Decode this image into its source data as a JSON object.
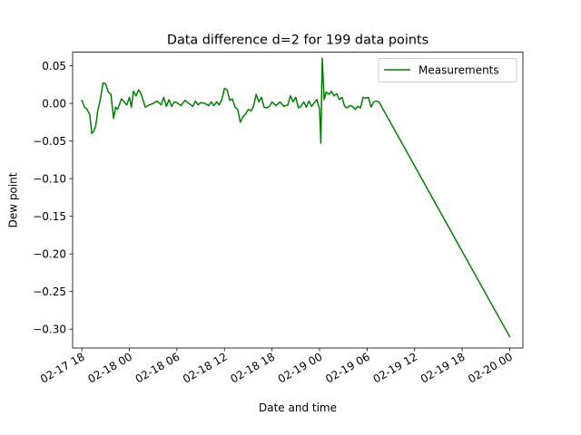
{
  "chart_data": {
    "type": "line",
    "title": "Data difference d=2 for 199 data points",
    "xlabel": "Date and time",
    "ylabel": "Dew point",
    "xlim": [
      "2018-02-17T16:50",
      "2018-02-20T01:40"
    ],
    "ylim": [
      -0.325,
      0.068
    ],
    "grid": false,
    "legend_position": "top-right",
    "x_ticks": [
      {
        "value": "2018-02-17T18:00",
        "label": "02-17 18"
      },
      {
        "value": "2018-02-18T00:00",
        "label": "02-18 00"
      },
      {
        "value": "2018-02-18T06:00",
        "label": "02-18 06"
      },
      {
        "value": "2018-02-18T12:00",
        "label": "02-18 12"
      },
      {
        "value": "2018-02-18T18:00",
        "label": "02-18 18"
      },
      {
        "value": "2018-02-19T00:00",
        "label": "02-19 00"
      },
      {
        "value": "2018-02-19T06:00",
        "label": "02-19 06"
      },
      {
        "value": "2018-02-19T12:00",
        "label": "02-19 12"
      },
      {
        "value": "2018-02-19T18:00",
        "label": "02-19 18"
      },
      {
        "value": "2018-02-20T00:00",
        "label": "02-20 00"
      }
    ],
    "y_ticks": [
      {
        "value": 0.05,
        "label": "0.05"
      },
      {
        "value": 0.0,
        "label": "0.00"
      },
      {
        "value": -0.05,
        "label": "−0.05"
      },
      {
        "value": -0.1,
        "label": "−0.10"
      },
      {
        "value": -0.15,
        "label": "−0.15"
      },
      {
        "value": -0.2,
        "label": "−0.20"
      },
      {
        "value": -0.25,
        "label": "−0.25"
      },
      {
        "value": -0.3,
        "label": "−0.30"
      }
    ],
    "series": [
      {
        "name": "Measurements",
        "color": "#008000",
        "points": [
          [
            "2018-02-17T18:00",
            0.004
          ],
          [
            "2018-02-17T18:20",
            -0.005
          ],
          [
            "2018-02-17T18:40",
            -0.008
          ],
          [
            "2018-02-17T19:00",
            -0.015
          ],
          [
            "2018-02-17T19:15",
            -0.04
          ],
          [
            "2018-02-17T19:30",
            -0.037
          ],
          [
            "2018-02-17T19:45",
            -0.03
          ],
          [
            "2018-02-17T20:00",
            -0.01
          ],
          [
            "2018-02-17T20:20",
            0.005
          ],
          [
            "2018-02-17T20:40",
            0.027
          ],
          [
            "2018-02-17T21:00",
            0.026
          ],
          [
            "2018-02-17T21:20",
            0.015
          ],
          [
            "2018-02-17T21:40",
            0.012
          ],
          [
            "2018-02-17T22:00",
            -0.02
          ],
          [
            "2018-02-17T22:15",
            -0.005
          ],
          [
            "2018-02-17T22:30",
            -0.008
          ],
          [
            "2018-02-17T23:00",
            0.006
          ],
          [
            "2018-02-17T23:20",
            0.002
          ],
          [
            "2018-02-17T23:40",
            -0.002
          ],
          [
            "2018-02-18T00:00",
            0.008
          ],
          [
            "2018-02-18T00:15",
            -0.005
          ],
          [
            "2018-02-18T00:30",
            0.016
          ],
          [
            "2018-02-18T00:50",
            0.01
          ],
          [
            "2018-02-18T01:10",
            0.018
          ],
          [
            "2018-02-18T01:30",
            0.012
          ],
          [
            "2018-02-18T02:00",
            -0.005
          ],
          [
            "2018-02-18T02:30",
            -0.002
          ],
          [
            "2018-02-18T03:00",
            0.0
          ],
          [
            "2018-02-18T03:30",
            0.003
          ],
          [
            "2018-02-18T04:00",
            -0.002
          ],
          [
            "2018-02-18T04:20",
            0.008
          ],
          [
            "2018-02-18T04:40",
            -0.004
          ],
          [
            "2018-02-18T05:00",
            0.005
          ],
          [
            "2018-02-18T05:20",
            -0.004
          ],
          [
            "2018-02-18T05:40",
            0.002
          ],
          [
            "2018-02-18T06:00",
            0.001
          ],
          [
            "2018-02-18T06:30",
            -0.003
          ],
          [
            "2018-02-18T07:00",
            0.004
          ],
          [
            "2018-02-18T07:30",
            0.0
          ],
          [
            "2018-02-18T08:00",
            -0.004
          ],
          [
            "2018-02-18T08:20",
            0.003
          ],
          [
            "2018-02-18T08:40",
            -0.002
          ],
          [
            "2018-02-18T09:00",
            0.001
          ],
          [
            "2018-02-18T09:30",
            0.0
          ],
          [
            "2018-02-18T10:00",
            -0.003
          ],
          [
            "2018-02-18T10:20",
            0.002
          ],
          [
            "2018-02-18T10:40",
            -0.003
          ],
          [
            "2018-02-18T11:00",
            0.002
          ],
          [
            "2018-02-18T11:20",
            -0.002
          ],
          [
            "2018-02-18T11:40",
            0.005
          ],
          [
            "2018-02-18T12:00",
            0.02
          ],
          [
            "2018-02-18T12:20",
            0.018
          ],
          [
            "2018-02-18T12:40",
            0.004
          ],
          [
            "2018-02-18T13:00",
            0.006
          ],
          [
            "2018-02-18T13:20",
            -0.005
          ],
          [
            "2018-02-18T13:40",
            -0.008
          ],
          [
            "2018-02-18T14:00",
            -0.025
          ],
          [
            "2018-02-18T14:20",
            -0.018
          ],
          [
            "2018-02-18T14:40",
            -0.014
          ],
          [
            "2018-02-18T15:00",
            -0.008
          ],
          [
            "2018-02-18T15:20",
            -0.01
          ],
          [
            "2018-02-18T15:40",
            -0.004
          ],
          [
            "2018-02-18T16:00",
            0.012
          ],
          [
            "2018-02-18T16:20",
            0.002
          ],
          [
            "2018-02-18T16:40",
            0.008
          ],
          [
            "2018-02-18T17:00",
            -0.005
          ],
          [
            "2018-02-18T17:20",
            -0.006
          ],
          [
            "2018-02-18T17:40",
            -0.004
          ],
          [
            "2018-02-18T18:00",
            0.002
          ],
          [
            "2018-02-18T18:30",
            -0.003
          ],
          [
            "2018-02-18T19:00",
            0.002
          ],
          [
            "2018-02-18T19:30",
            -0.004
          ],
          [
            "2018-02-18T20:00",
            -0.002
          ],
          [
            "2018-02-18T20:20",
            0.01
          ],
          [
            "2018-02-18T20:40",
            0.002
          ],
          [
            "2018-02-18T21:00",
            0.008
          ],
          [
            "2018-02-18T21:20",
            -0.006
          ],
          [
            "2018-02-18T21:40",
            -0.004
          ],
          [
            "2018-02-18T22:00",
            0.002
          ],
          [
            "2018-02-18T22:20",
            -0.005
          ],
          [
            "2018-02-18T22:40",
            0.003
          ],
          [
            "2018-02-18T23:00",
            -0.004
          ],
          [
            "2018-02-18T23:20",
            0.001
          ],
          [
            "2018-02-18T23:40",
            0.005
          ],
          [
            "2018-02-19T00:00",
            -0.008
          ],
          [
            "2018-02-19T00:10",
            -0.053
          ],
          [
            "2018-02-19T00:20",
            0.06
          ],
          [
            "2018-02-19T00:35",
            0.005
          ],
          [
            "2018-02-19T00:50",
            0.015
          ],
          [
            "2018-02-19T01:10",
            0.012
          ],
          [
            "2018-02-19T01:30",
            0.016
          ],
          [
            "2018-02-19T01:50",
            0.01
          ],
          [
            "2018-02-19T02:10",
            0.013
          ],
          [
            "2018-02-19T02:30",
            0.005
          ],
          [
            "2018-02-19T02:50",
            0.008
          ],
          [
            "2018-02-19T03:10",
            -0.004
          ],
          [
            "2018-02-19T03:30",
            -0.006
          ],
          [
            "2018-02-19T03:50",
            -0.003
          ],
          [
            "2018-02-19T04:10",
            -0.004
          ],
          [
            "2018-02-19T04:30",
            -0.008
          ],
          [
            "2018-02-19T04:50",
            -0.004
          ],
          [
            "2018-02-19T05:10",
            -0.006
          ],
          [
            "2018-02-19T05:30",
            0.008
          ],
          [
            "2018-02-19T05:50",
            0.007
          ],
          [
            "2018-02-19T06:10",
            0.008
          ],
          [
            "2018-02-19T06:30",
            -0.005
          ],
          [
            "2018-02-19T06:50",
            0.002
          ],
          [
            "2018-02-19T07:10",
            0.003
          ],
          [
            "2018-02-19T07:30",
            0.002
          ],
          [
            "2018-02-20T00:00",
            -0.31
          ]
        ]
      }
    ]
  }
}
